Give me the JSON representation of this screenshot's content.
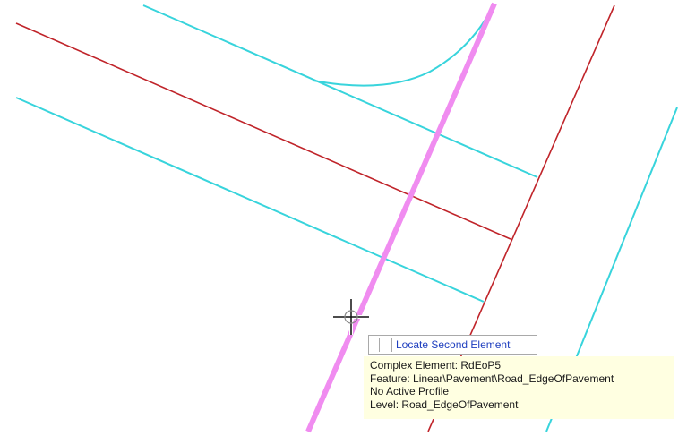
{
  "prompt": {
    "label": "Locate Second Element"
  },
  "info_tip": {
    "line1": "Complex Element: RdEoP5",
    "line2": "Feature: Linear\\Pavement\\Road_EdgeOfPavement",
    "line3": "No Active Profile",
    "line4": "Level: Road_EdgeOfPavement"
  },
  "colors": {
    "background": "#ffffff",
    "cyan_line": "#38d4dc",
    "red_line": "#c0242a",
    "highlight": "#f08cf0",
    "tooltip_bg": "#ffffe1",
    "prompt_text": "#1f3fbf"
  }
}
